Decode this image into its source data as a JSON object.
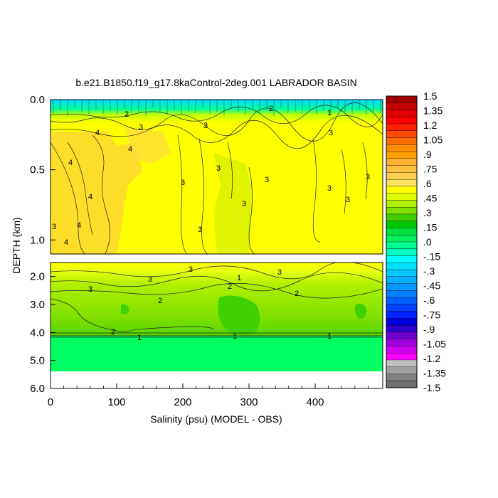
{
  "chart_data": {
    "type": "heatmap",
    "title": "b.e21.B1850.f19_g17.8kaControl-2deg.001 LABRADOR BASIN",
    "xlabel": "Salinity (psu) (MODEL - OBS)",
    "ylabel": "DEPTH (km)",
    "xlim": [
      0,
      500
    ],
    "x_ticks": [
      "0",
      "100",
      "200",
      "300",
      "400"
    ],
    "x_tick_values": [
      0,
      100,
      200,
      300,
      400
    ],
    "upper_panel": {
      "ylim": [
        0.0,
        1.1
      ],
      "y_ticks": [
        "0.0",
        "0.5",
        "1.0"
      ],
      "y_tick_values": [
        0.0,
        0.5,
        1.0
      ]
    },
    "lower_panel": {
      "ylim": [
        1.5,
        6.0
      ],
      "y_ticks": [
        "2.0",
        "3.0",
        "4.0",
        "5.0",
        "6.0"
      ],
      "y_tick_values": [
        2.0,
        3.0,
        4.0,
        5.0,
        6.0
      ],
      "data_bottom_km": 5.35
    },
    "contour_labels": [
      "3",
      "4",
      "2",
      "1"
    ],
    "colorbar": {
      "labels": [
        "1.5",
        "1.35",
        "1.2",
        "1.05",
        ".9",
        ".75",
        ".6",
        ".45",
        ".3",
        ".15",
        ".0",
        "-.15",
        "-.3",
        "-.45",
        "-.6",
        "-.75",
        "-.9",
        "-1.05",
        "-1.2",
        "-1.35",
        "-1.5"
      ],
      "colors_top_to_bottom": [
        "#a50000",
        "#c40000",
        "#e00000",
        "#ff0000",
        "#ff2200",
        "#ff4a00",
        "#ff6e00",
        "#ff8c00",
        "#ffa000",
        "#ffb030",
        "#ffc040",
        "#ffd050",
        "#ffe060",
        "#ffff00",
        "#e0ff00",
        "#b0f000",
        "#80e000",
        "#40d000",
        "#00c800",
        "#00e040",
        "#00f060",
        "#00ff90",
        "#00ffc0",
        "#00ffff",
        "#00e0ff",
        "#00c8ff",
        "#00b0ff",
        "#0098ff",
        "#0080ff",
        "#0060ff",
        "#0040ff",
        "#0020ff",
        "#0000e0",
        "#3000d0",
        "#7000d0",
        "#a000e0",
        "#d000f0",
        "#ff00ff",
        "#c0c0c0",
        "#a0a0a0",
        "#808080",
        "#707070"
      ]
    }
  }
}
